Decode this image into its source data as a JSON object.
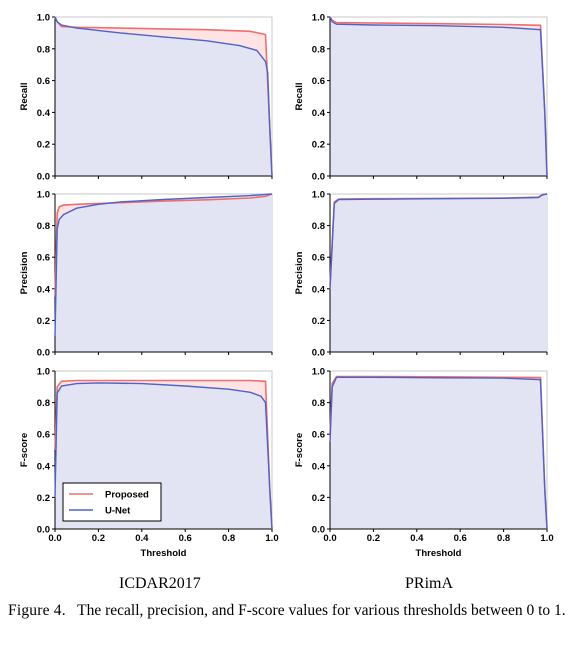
{
  "colors": {
    "proposed": "#f06e6e",
    "unet": "#4d63c8",
    "proposed_fill": "#fde3e3",
    "unet_fill": "#dde3f6"
  },
  "legend": {
    "placement": "bottom-left",
    "panel": "ICDAR2017 F-score"
  },
  "columns": [
    "ICDAR2017",
    "PRimA"
  ],
  "caption": {
    "label": "Figure 4.",
    "text": "The recall, precision, and F-score values for various thresholds between 0 to 1."
  },
  "chart_data": [
    {
      "type": "line",
      "dataset": "ICDAR2017",
      "ylabel": "Recall",
      "xlabel": "",
      "xlim": [
        0,
        1
      ],
      "ylim": [
        0,
        1
      ],
      "xticks": [
        "0.0",
        "0.2",
        "0.4",
        "0.6",
        "0.8",
        "1.0"
      ],
      "yticks": [
        "0.0",
        "0.2",
        "0.4",
        "0.6",
        "0.8",
        "1.0"
      ],
      "grid": false,
      "series": [
        {
          "name": "Proposed",
          "x": [
            0,
            0.01,
            0.03,
            0.1,
            0.3,
            0.5,
            0.7,
            0.9,
            0.97,
            0.99,
            1.0
          ],
          "y": [
            1.0,
            0.97,
            0.94,
            0.935,
            0.93,
            0.925,
            0.92,
            0.91,
            0.89,
            0.3,
            0.0
          ]
        },
        {
          "name": "U-Net",
          "x": [
            0,
            0.01,
            0.03,
            0.1,
            0.3,
            0.5,
            0.7,
            0.85,
            0.93,
            0.97,
            0.98,
            0.99,
            1.0
          ],
          "y": [
            1.0,
            0.97,
            0.95,
            0.93,
            0.9,
            0.875,
            0.85,
            0.82,
            0.79,
            0.72,
            0.65,
            0.3,
            0.0
          ]
        }
      ]
    },
    {
      "type": "line",
      "dataset": "PRimA",
      "ylabel": "Recall",
      "xlabel": "",
      "xlim": [
        0,
        1
      ],
      "ylim": [
        0,
        1
      ],
      "xticks": [
        "0.0",
        "0.2",
        "0.4",
        "0.6",
        "0.8",
        "1.0"
      ],
      "yticks": [
        "0.0",
        "0.2",
        "0.4",
        "0.6",
        "0.8",
        "1.0"
      ],
      "grid": false,
      "series": [
        {
          "name": "Proposed",
          "x": [
            0,
            0.01,
            0.03,
            0.2,
            0.5,
            0.8,
            0.97,
            0.99,
            1.0
          ],
          "y": [
            1.0,
            0.98,
            0.965,
            0.962,
            0.958,
            0.953,
            0.948,
            0.4,
            0.0
          ]
        },
        {
          "name": "U-Net",
          "x": [
            0,
            0.01,
            0.03,
            0.2,
            0.5,
            0.8,
            0.97,
            0.99,
            1.0
          ],
          "y": [
            1.0,
            0.97,
            0.955,
            0.95,
            0.945,
            0.935,
            0.92,
            0.4,
            0.0
          ]
        }
      ]
    },
    {
      "type": "line",
      "dataset": "ICDAR2017",
      "ylabel": "Precision",
      "xlabel": "",
      "xlim": [
        0,
        1
      ],
      "ylim": [
        0,
        1
      ],
      "xticks": [
        "0.0",
        "0.2",
        "0.4",
        "0.6",
        "0.8",
        "1.0"
      ],
      "yticks": [
        "0.0",
        "0.2",
        "0.4",
        "0.6",
        "0.8",
        "1.0"
      ],
      "grid": false,
      "series": [
        {
          "name": "Proposed",
          "x": [
            0,
            0.01,
            0.02,
            0.04,
            0.1,
            0.3,
            0.5,
            0.7,
            0.9,
            0.97,
            1.0
          ],
          "y": [
            0.35,
            0.88,
            0.92,
            0.93,
            0.935,
            0.945,
            0.955,
            0.963,
            0.975,
            0.985,
            1.0
          ]
        },
        {
          "name": "U-Net",
          "x": [
            0,
            0.01,
            0.02,
            0.04,
            0.1,
            0.2,
            0.3,
            0.5,
            0.7,
            0.9,
            1.0
          ],
          "y": [
            0.1,
            0.78,
            0.84,
            0.87,
            0.91,
            0.935,
            0.95,
            0.965,
            0.978,
            0.99,
            1.0
          ]
        }
      ]
    },
    {
      "type": "line",
      "dataset": "PRimA",
      "ylabel": "Precision",
      "xlabel": "",
      "xlim": [
        0,
        1
      ],
      "ylim": [
        0,
        1
      ],
      "xticks": [
        "0.0",
        "0.2",
        "0.4",
        "0.6",
        "0.8",
        "1.0"
      ],
      "yticks": [
        "0.0",
        "0.2",
        "0.4",
        "0.6",
        "0.8",
        "1.0"
      ],
      "grid": false,
      "series": [
        {
          "name": "Proposed",
          "x": [
            0,
            0.02,
            0.04,
            0.2,
            0.5,
            0.8,
            0.96,
            0.98,
            1.0
          ],
          "y": [
            0.42,
            0.95,
            0.968,
            0.97,
            0.972,
            0.975,
            0.98,
            0.997,
            1.0
          ]
        },
        {
          "name": "U-Net",
          "x": [
            0,
            0.02,
            0.04,
            0.2,
            0.5,
            0.8,
            0.96,
            0.98,
            1.0
          ],
          "y": [
            0.4,
            0.94,
            0.965,
            0.967,
            0.97,
            0.973,
            0.978,
            0.995,
            1.0
          ]
        }
      ]
    },
    {
      "type": "line",
      "dataset": "ICDAR2017",
      "ylabel": "F-score",
      "xlabel": "Threshold",
      "xlim": [
        0,
        1
      ],
      "ylim": [
        0,
        1
      ],
      "xticks": [
        "0.0",
        "0.2",
        "0.4",
        "0.6",
        "0.8",
        "1.0"
      ],
      "yticks": [
        "0.0",
        "0.2",
        "0.4",
        "0.6",
        "0.8",
        "1.0"
      ],
      "grid": false,
      "series": [
        {
          "name": "Proposed",
          "x": [
            0,
            0.01,
            0.03,
            0.1,
            0.3,
            0.5,
            0.7,
            0.9,
            0.97,
            0.99,
            1.0
          ],
          "y": [
            0.5,
            0.9,
            0.935,
            0.94,
            0.94,
            0.94,
            0.94,
            0.94,
            0.935,
            0.25,
            0.0
          ]
        },
        {
          "name": "U-Net",
          "x": [
            0,
            0.01,
            0.03,
            0.1,
            0.2,
            0.4,
            0.6,
            0.8,
            0.9,
            0.95,
            0.97,
            0.99,
            1.0
          ],
          "y": [
            0.2,
            0.86,
            0.905,
            0.92,
            0.925,
            0.92,
            0.905,
            0.885,
            0.865,
            0.84,
            0.8,
            0.25,
            0.0
          ]
        }
      ]
    },
    {
      "type": "line",
      "dataset": "PRimA",
      "ylabel": "F-score",
      "xlabel": "Threshold",
      "xlim": [
        0,
        1
      ],
      "ylim": [
        0,
        1
      ],
      "xticks": [
        "0.0",
        "0.2",
        "0.4",
        "0.6",
        "0.8",
        "1.0"
      ],
      "yticks": [
        "0.0",
        "0.2",
        "0.4",
        "0.6",
        "0.8",
        "1.0"
      ],
      "grid": false,
      "series": [
        {
          "name": "Proposed",
          "x": [
            0,
            0.01,
            0.03,
            0.2,
            0.5,
            0.8,
            0.97,
            0.99,
            1.0
          ],
          "y": [
            0.6,
            0.92,
            0.965,
            0.965,
            0.963,
            0.96,
            0.958,
            0.25,
            0.0
          ]
        },
        {
          "name": "U-Net",
          "x": [
            0,
            0.01,
            0.03,
            0.2,
            0.5,
            0.8,
            0.97,
            0.99,
            1.0
          ],
          "y": [
            0.55,
            0.9,
            0.96,
            0.96,
            0.957,
            0.955,
            0.945,
            0.25,
            0.0
          ]
        }
      ]
    }
  ]
}
